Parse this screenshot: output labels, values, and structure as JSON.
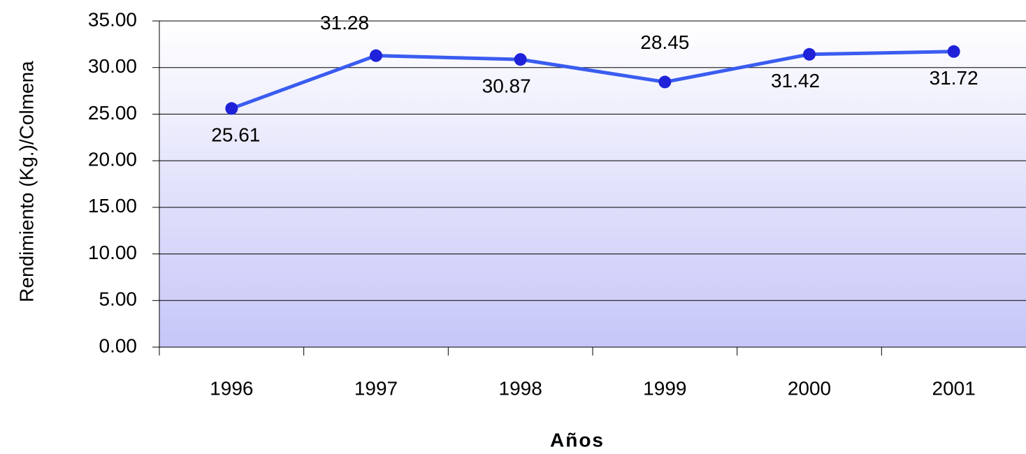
{
  "chart_data": {
    "type": "line",
    "x_label": "Años",
    "y_label": "Rendimiento (Kg.)/Colmena",
    "categories": [
      "1996",
      "1997",
      "1998",
      "1999",
      "2000",
      "2001"
    ],
    "series": [
      {
        "color": "#3a5cf0",
        "marker_color": "#1f22d8",
        "values": [
          25.61,
          31.28,
          30.87,
          28.45,
          31.42,
          31.72
        ]
      }
    ],
    "ylim": [
      0,
      35
    ],
    "yticks": [
      {
        "value": 0,
        "label": "0.00"
      },
      {
        "value": 5,
        "label": "5.00"
      },
      {
        "value": 10,
        "label": "10.00"
      },
      {
        "value": 15,
        "label": "15.00"
      },
      {
        "value": 20,
        "label": "20.00"
      },
      {
        "value": 25,
        "label": "25.00"
      },
      {
        "value": 30,
        "label": "30.00"
      },
      {
        "value": 35,
        "label": "35.00"
      }
    ],
    "grid": true
  }
}
